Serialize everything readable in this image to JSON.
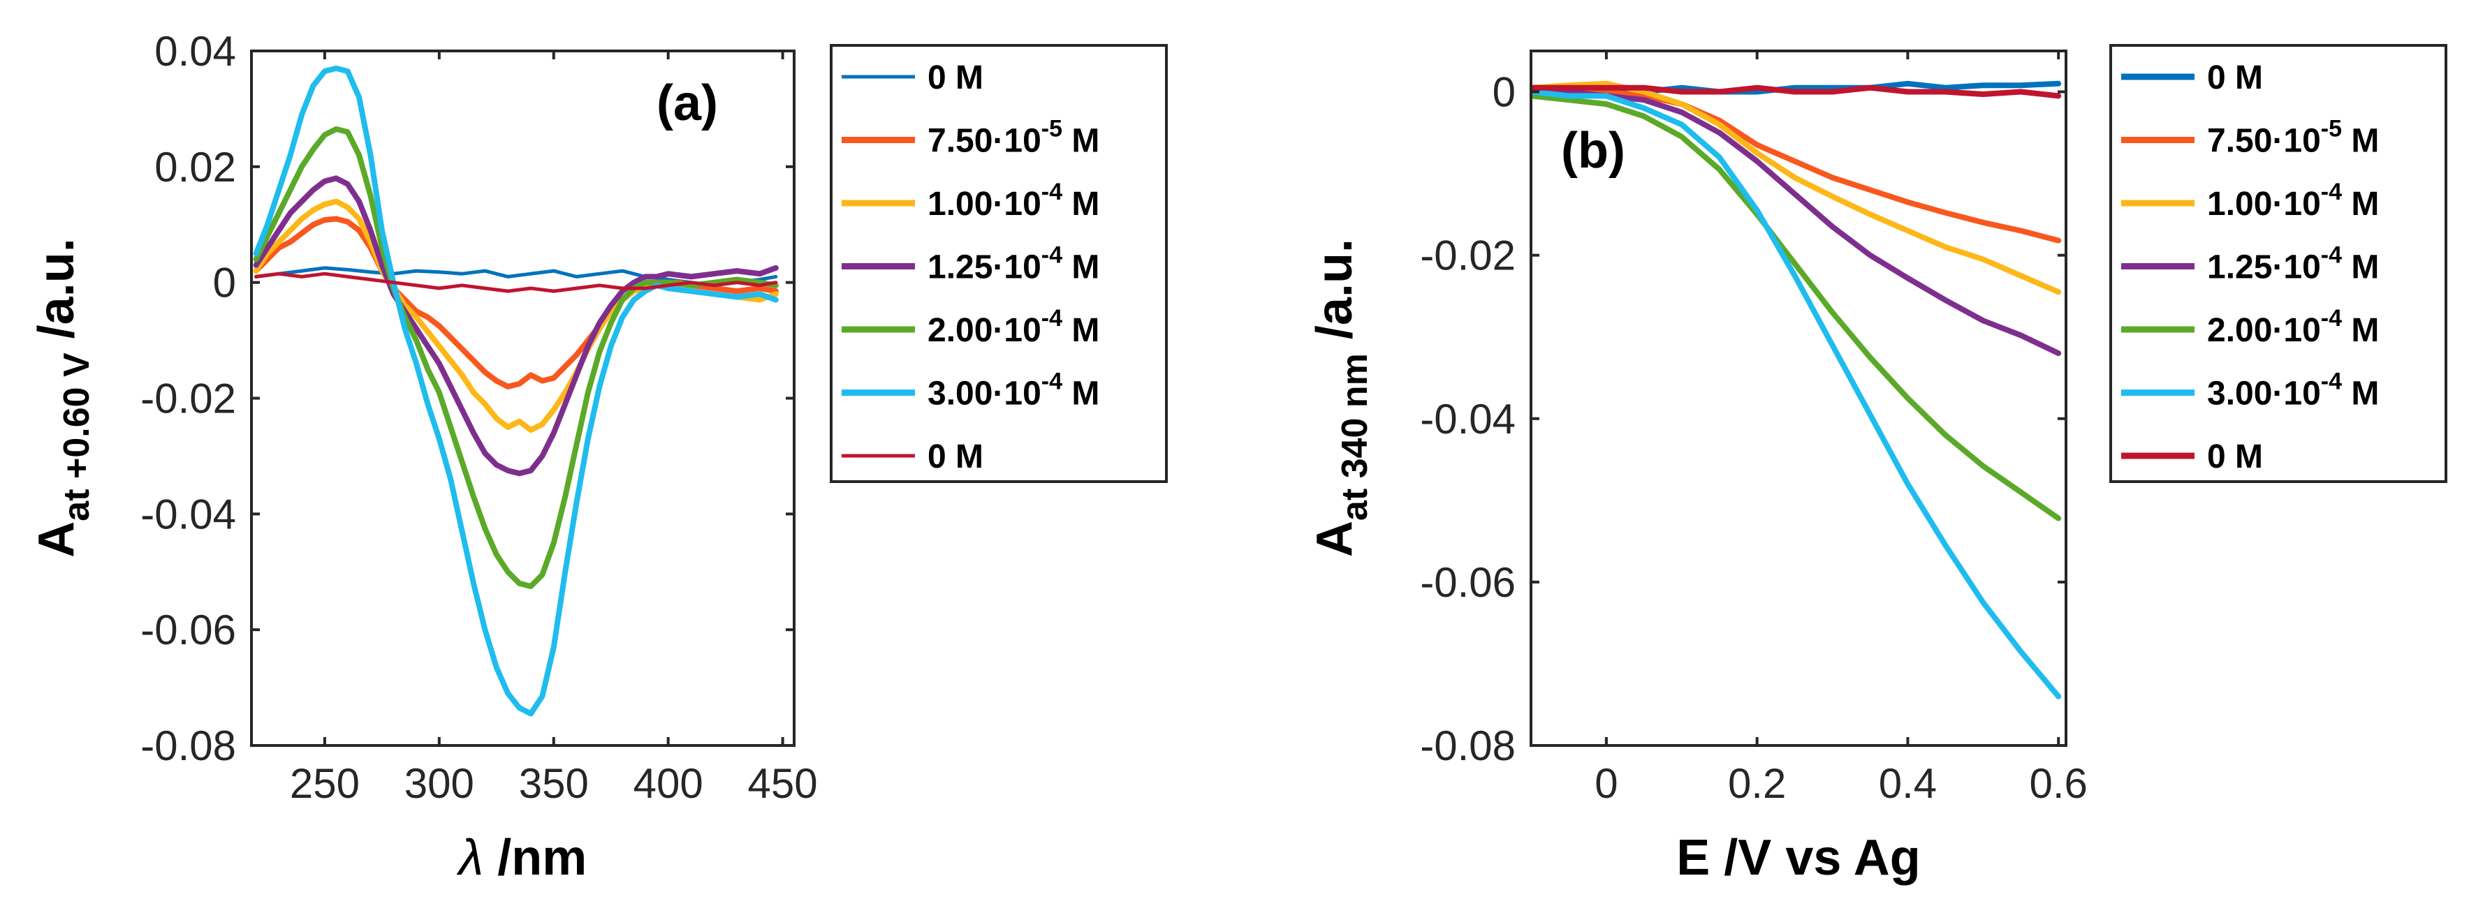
{
  "chart_data": [
    {
      "type": "line",
      "panel_label": "(a)",
      "xlabel_symbol": "λ",
      "xlabel_unit": " /nm",
      "ylabel_main": "A",
      "ylabel_sub": "at +0.60 V",
      "ylabel_unit": " /a.u.",
      "xlim": [
        218,
        455
      ],
      "ylim": [
        -0.08,
        0.04
      ],
      "xticks": [
        250,
        300,
        350,
        400,
        450
      ],
      "yticks": [
        0.04,
        0.02,
        0,
        -0.02,
        -0.04,
        -0.06,
        -0.08
      ],
      "ytick_labels": [
        "0.04",
        "0.02",
        "0",
        "-0.02",
        "-0.04",
        "-0.06",
        "-0.08"
      ],
      "xtick_labels": [
        "250",
        "300",
        "350",
        "400",
        "450"
      ],
      "legend": [
        {
          "base": "0 M",
          "exp": "",
          "unit": "",
          "color": "#0072BD"
        },
        {
          "base": "7.50·10",
          "exp": "-5",
          "unit": " M",
          "color": "#F8581E"
        },
        {
          "base": "1.00·10",
          "exp": "-4",
          "unit": " M",
          "color": "#FDB718"
        },
        {
          "base": "1.25·10",
          "exp": "-4",
          "unit": " M",
          "color": "#7E2F8E"
        },
        {
          "base": "2.00·10",
          "exp": "-4",
          "unit": " M",
          "color": "#5BA928"
        },
        {
          "base": "3.00·10",
          "exp": "-4",
          "unit": " M",
          "color": "#1FBCEE"
        },
        {
          "base": "0 M",
          "exp": "",
          "unit": "",
          "color": "#C0142F"
        }
      ],
      "series": [
        {
          "name": "0 M",
          "color": "#0072BD",
          "width": 5,
          "x": [
            220,
            230,
            240,
            250,
            260,
            270,
            280,
            290,
            300,
            310,
            320,
            330,
            340,
            350,
            360,
            370,
            380,
            390,
            400,
            410,
            420,
            430,
            440,
            447
          ],
          "y": [
            0.001,
            0.0015,
            0.002,
            0.0025,
            0.0022,
            0.0018,
            0.0015,
            0.002,
            0.0018,
            0.0015,
            0.002,
            0.001,
            0.0015,
            0.002,
            0.001,
            0.0015,
            0.002,
            0.001,
            0.0005,
            0.0,
            -0.0005,
            0.0,
            0.0005,
            0.001
          ]
        },
        {
          "name": "7.50·10-5 M",
          "color": "#F8581E",
          "width": 8,
          "x": [
            220,
            225,
            230,
            235,
            240,
            245,
            250,
            255,
            260,
            265,
            270,
            275,
            280,
            285,
            290,
            295,
            300,
            305,
            310,
            315,
            320,
            325,
            330,
            335,
            340,
            345,
            350,
            355,
            360,
            365,
            370,
            375,
            380,
            385,
            390,
            395,
            400,
            405,
            410,
            420,
            430,
            440,
            447
          ],
          "y": [
            0.002,
            0.004,
            0.006,
            0.007,
            0.0085,
            0.01,
            0.0108,
            0.011,
            0.0105,
            0.009,
            0.006,
            0.002,
            -0.001,
            -0.003,
            -0.005,
            -0.006,
            -0.0075,
            -0.0095,
            -0.0115,
            -0.0135,
            -0.0155,
            -0.017,
            -0.018,
            -0.0175,
            -0.016,
            -0.017,
            -0.0165,
            -0.0145,
            -0.0125,
            -0.01,
            -0.0075,
            -0.005,
            -0.003,
            -0.0015,
            -0.0005,
            0.0,
            0.0,
            0.0,
            -0.0005,
            -0.001,
            -0.0015,
            -0.001,
            -0.0015
          ]
        },
        {
          "name": "1.00·10-4 M",
          "color": "#FDB718",
          "width": 8,
          "x": [
            220,
            225,
            230,
            235,
            240,
            245,
            250,
            255,
            260,
            265,
            270,
            275,
            280,
            285,
            290,
            295,
            300,
            305,
            310,
            315,
            320,
            325,
            330,
            335,
            340,
            345,
            350,
            355,
            360,
            365,
            370,
            375,
            380,
            385,
            390,
            395,
            400,
            410,
            420,
            430,
            440,
            447
          ],
          "y": [
            0.002,
            0.005,
            0.007,
            0.009,
            0.011,
            0.0125,
            0.0135,
            0.014,
            0.013,
            0.011,
            0.007,
            0.002,
            -0.001,
            -0.004,
            -0.006,
            -0.0085,
            -0.011,
            -0.0135,
            -0.016,
            -0.019,
            -0.021,
            -0.0235,
            -0.025,
            -0.024,
            -0.0255,
            -0.0245,
            -0.022,
            -0.019,
            -0.0155,
            -0.0115,
            -0.008,
            -0.005,
            -0.003,
            -0.0015,
            -0.001,
            -0.0005,
            -0.001,
            -0.0015,
            -0.002,
            -0.0025,
            -0.003,
            -0.002
          ]
        },
        {
          "name": "1.25·10-4 M",
          "color": "#7E2F8E",
          "width": 8,
          "x": [
            220,
            225,
            230,
            235,
            240,
            245,
            250,
            255,
            260,
            265,
            270,
            275,
            280,
            285,
            290,
            295,
            300,
            305,
            310,
            315,
            320,
            325,
            330,
            335,
            340,
            345,
            350,
            355,
            360,
            365,
            370,
            375,
            380,
            385,
            390,
            395,
            400,
            410,
            420,
            430,
            440,
            447
          ],
          "y": [
            0.003,
            0.006,
            0.009,
            0.012,
            0.014,
            0.016,
            0.0175,
            0.018,
            0.017,
            0.014,
            0.009,
            0.003,
            -0.002,
            -0.005,
            -0.008,
            -0.011,
            -0.014,
            -0.018,
            -0.022,
            -0.026,
            -0.0295,
            -0.0315,
            -0.0325,
            -0.033,
            -0.0325,
            -0.03,
            -0.026,
            -0.021,
            -0.016,
            -0.011,
            -0.007,
            -0.004,
            -0.0015,
            0.0,
            0.001,
            0.001,
            0.0015,
            0.001,
            0.0015,
            0.002,
            0.0015,
            0.0025
          ]
        },
        {
          "name": "2.00·10-4 M",
          "color": "#5BA928",
          "width": 8,
          "x": [
            220,
            225,
            230,
            235,
            240,
            245,
            250,
            255,
            260,
            265,
            270,
            275,
            280,
            285,
            290,
            295,
            300,
            305,
            310,
            315,
            320,
            325,
            330,
            335,
            340,
            345,
            350,
            355,
            360,
            365,
            370,
            375,
            380,
            385,
            390,
            395,
            400,
            410,
            420,
            430,
            440,
            447
          ],
          "y": [
            0.004,
            0.008,
            0.012,
            0.016,
            0.02,
            0.023,
            0.0255,
            0.0265,
            0.026,
            0.022,
            0.015,
            0.006,
            -0.001,
            -0.006,
            -0.01,
            -0.015,
            -0.019,
            -0.025,
            -0.031,
            -0.037,
            -0.0425,
            -0.047,
            -0.05,
            -0.052,
            -0.0525,
            -0.0505,
            -0.045,
            -0.037,
            -0.028,
            -0.019,
            -0.012,
            -0.007,
            -0.003,
            -0.001,
            0.0,
            0.0,
            0.0,
            -0.0005,
            0.0,
            0.0005,
            0.0,
            -0.0005
          ]
        },
        {
          "name": "3.00·10-4 M",
          "color": "#1FBCEE",
          "width": 8,
          "x": [
            220,
            225,
            230,
            235,
            240,
            245,
            250,
            255,
            260,
            265,
            270,
            275,
            280,
            285,
            290,
            295,
            300,
            305,
            310,
            315,
            320,
            325,
            330,
            335,
            340,
            345,
            350,
            355,
            360,
            365,
            370,
            375,
            380,
            385,
            390,
            395,
            400,
            410,
            420,
            430,
            440,
            447
          ],
          "y": [
            0.005,
            0.01,
            0.016,
            0.022,
            0.029,
            0.034,
            0.0365,
            0.037,
            0.0365,
            0.032,
            0.022,
            0.009,
            0.0,
            -0.008,
            -0.014,
            -0.021,
            -0.027,
            -0.034,
            -0.043,
            -0.052,
            -0.06,
            -0.0665,
            -0.071,
            -0.0735,
            -0.0745,
            -0.0715,
            -0.063,
            -0.05,
            -0.038,
            -0.027,
            -0.018,
            -0.011,
            -0.006,
            -0.003,
            -0.0015,
            -0.0005,
            -0.001,
            -0.0015,
            -0.002,
            -0.0025,
            -0.002,
            -0.003
          ]
        },
        {
          "name": "0 M",
          "color": "#C0142F",
          "width": 5,
          "x": [
            220,
            230,
            240,
            250,
            260,
            270,
            280,
            290,
            300,
            310,
            320,
            330,
            340,
            350,
            360,
            370,
            380,
            390,
            400,
            410,
            420,
            430,
            440,
            447
          ],
          "y": [
            0.001,
            0.0015,
            0.001,
            0.0015,
            0.001,
            0.0005,
            0.0,
            -0.0005,
            -0.001,
            -0.0005,
            -0.001,
            -0.0015,
            -0.001,
            -0.0015,
            -0.001,
            -0.0005,
            -0.001,
            -0.001,
            -0.0005,
            0.0,
            -0.0005,
            0.0,
            -0.0005,
            0.0
          ]
        }
      ]
    },
    {
      "type": "line",
      "panel_label": "(b)",
      "xlabel": "E /V vs Ag",
      "ylabel_main": "A",
      "ylabel_sub": "at 340 nm",
      "ylabel_unit": " /a.u.",
      "xlim": [
        -0.1,
        0.61
      ],
      "ylim": [
        -0.08,
        0.005
      ],
      "xticks": [
        0,
        0.2,
        0.4,
        0.6
      ],
      "xtick_labels": [
        "0",
        "0.2",
        "0.4",
        "0.6"
      ],
      "yticks": [
        0,
        -0.02,
        -0.04,
        -0.06,
        -0.08
      ],
      "ytick_labels": [
        "0",
        "-0.02",
        "-0.04",
        "-0.06",
        "-0.08"
      ],
      "legend": [
        {
          "base": "0 M",
          "exp": "",
          "unit": "",
          "color": "#0072BD"
        },
        {
          "base": "7.50·10",
          "exp": "-5",
          "unit": " M",
          "color": "#F8581E"
        },
        {
          "base": "1.00·10",
          "exp": "-4",
          "unit": " M",
          "color": "#FDB718"
        },
        {
          "base": "1.25·10",
          "exp": "-4",
          "unit": " M",
          "color": "#7E2F8E"
        },
        {
          "base": "2.00·10",
          "exp": "-4",
          "unit": " M",
          "color": "#5BA928"
        },
        {
          "base": "3.00·10",
          "exp": "-4",
          "unit": " M",
          "color": "#1FBCEE"
        },
        {
          "base": "0 M",
          "exp": "",
          "unit": "",
          "color": "#C0142F"
        }
      ],
      "series": [
        {
          "name": "0 M",
          "color": "#0072BD",
          "width": 8,
          "x": [
            -0.1,
            -0.05,
            0.0,
            0.05,
            0.1,
            0.15,
            0.2,
            0.25,
            0.3,
            0.35,
            0.4,
            0.45,
            0.5,
            0.55,
            0.6
          ],
          "y": [
            0.0005,
            0.0005,
            0.0005,
            0.0,
            0.0005,
            0.0,
            0.0,
            0.0005,
            0.0005,
            0.0005,
            0.001,
            0.0005,
            0.0008,
            0.0008,
            0.001
          ]
        },
        {
          "name": "7.50·10-5 M",
          "color": "#F8581E",
          "width": 8,
          "x": [
            -0.1,
            -0.05,
            0.0,
            0.05,
            0.1,
            0.15,
            0.2,
            0.25,
            0.3,
            0.35,
            0.4,
            0.45,
            0.5,
            0.55,
            0.6
          ],
          "y": [
            0.0,
            0.0,
            0.0,
            -0.0005,
            -0.0015,
            -0.0035,
            -0.0065,
            -0.0085,
            -0.0105,
            -0.012,
            -0.0135,
            -0.0148,
            -0.016,
            -0.017,
            -0.0182
          ]
        },
        {
          "name": "1.00·10-4 M",
          "color": "#FDB718",
          "width": 8,
          "x": [
            -0.1,
            -0.05,
            0.0,
            0.05,
            0.1,
            0.15,
            0.2,
            0.25,
            0.3,
            0.35,
            0.4,
            0.45,
            0.5,
            0.55,
            0.6
          ],
          "y": [
            0.0005,
            0.0008,
            0.001,
            0.0,
            -0.0015,
            -0.004,
            -0.0075,
            -0.0105,
            -0.0128,
            -0.015,
            -0.017,
            -0.019,
            -0.0205,
            -0.0225,
            -0.0245
          ]
        },
        {
          "name": "1.25·10-4 M",
          "color": "#7E2F8E",
          "width": 8,
          "x": [
            -0.1,
            -0.05,
            0.0,
            0.05,
            0.1,
            0.15,
            0.2,
            0.25,
            0.3,
            0.35,
            0.4,
            0.45,
            0.5,
            0.55,
            0.6
          ],
          "y": [
            0.0,
            0.0,
            -0.0005,
            -0.001,
            -0.0025,
            -0.005,
            -0.0085,
            -0.0125,
            -0.0165,
            -0.02,
            -0.0228,
            -0.0255,
            -0.028,
            -0.0298,
            -0.032
          ]
        },
        {
          "name": "2.00·10-4 M",
          "color": "#5BA928",
          "width": 8,
          "x": [
            -0.1,
            -0.05,
            0.0,
            0.05,
            0.1,
            0.15,
            0.2,
            0.25,
            0.3,
            0.35,
            0.4,
            0.45,
            0.5,
            0.55,
            0.6
          ],
          "y": [
            -0.0005,
            -0.001,
            -0.0015,
            -0.003,
            -0.0055,
            -0.0095,
            -0.015,
            -0.021,
            -0.027,
            -0.0325,
            -0.0375,
            -0.042,
            -0.0458,
            -0.049,
            -0.0522
          ]
        },
        {
          "name": "3.00·10-4 M",
          "color": "#1FBCEE",
          "width": 8,
          "x": [
            -0.1,
            -0.05,
            0.0,
            0.05,
            0.1,
            0.15,
            0.2,
            0.25,
            0.3,
            0.35,
            0.4,
            0.45,
            0.5,
            0.55,
            0.6
          ],
          "y": [
            0.0,
            -0.0005,
            -0.0005,
            -0.002,
            -0.004,
            -0.008,
            -0.0145,
            -0.0225,
            -0.031,
            -0.0395,
            -0.048,
            -0.0555,
            -0.0625,
            -0.0685,
            -0.074
          ]
        },
        {
          "name": "0 M",
          "color": "#C0142F",
          "width": 8,
          "x": [
            -0.1,
            -0.05,
            0.0,
            0.05,
            0.1,
            0.15,
            0.2,
            0.25,
            0.3,
            0.35,
            0.4,
            0.45,
            0.5,
            0.55,
            0.6
          ],
          "y": [
            0.0005,
            0.0005,
            0.0005,
            0.0005,
            0.0,
            0.0,
            0.0005,
            0.0,
            0.0,
            0.0005,
            0.0,
            0.0,
            -0.0003,
            0.0,
            -0.0005
          ]
        }
      ]
    }
  ]
}
